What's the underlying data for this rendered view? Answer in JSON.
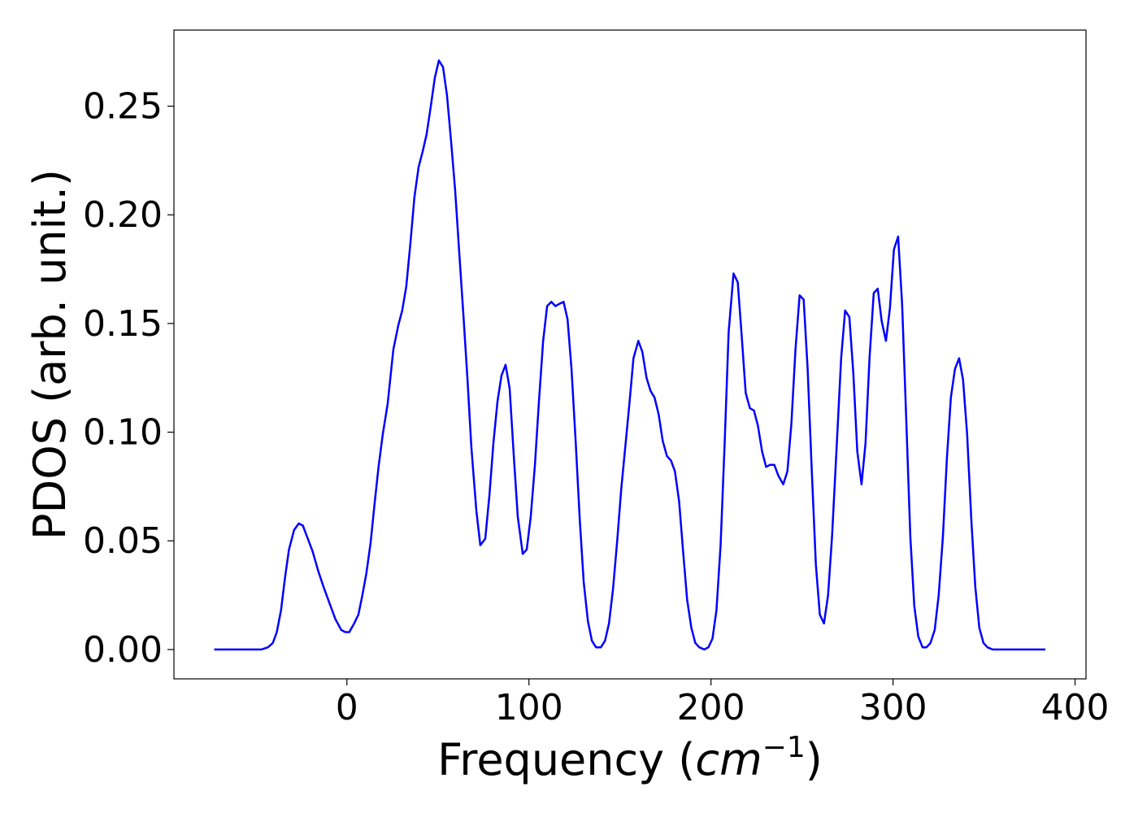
{
  "chart_data": {
    "type": "line",
    "title": "",
    "xlabel": "Frequency",
    "xlabel_unit_base": "cm",
    "xlabel_unit_exp": "−1",
    "ylabel": "PDOS (arb. unit.)",
    "xlim": [
      -95,
      406
    ],
    "ylim": [
      -0.0135,
      0.285
    ],
    "grid": false,
    "legend": "none",
    "xticks": [
      0,
      100,
      200,
      300,
      400
    ],
    "xtick_labels": [
      "0",
      "100",
      "200",
      "300",
      "400"
    ],
    "yticks": [
      0,
      0.05,
      0.1,
      0.15,
      0.2,
      0.25
    ],
    "ytick_labels": [
      "0.00",
      "0.05",
      "0.10",
      "0.15",
      "0.20",
      "0.25"
    ],
    "series": [
      {
        "name": "PDOS",
        "color": "#0000ff",
        "x": [
          -72.9,
          -47,
          -43.4,
          -40.7,
          -38.5,
          -36.2,
          -34,
          -31.8,
          -29,
          -26.4,
          -24.2,
          -21.9,
          -18.8,
          -15.7,
          -12.5,
          -9.4,
          -6.3,
          -3.1,
          -0.9,
          1.3,
          4,
          6.3,
          8.5,
          10.7,
          13,
          15.2,
          17.4,
          19.7,
          22.4,
          25.5,
          28.2,
          30.4,
          32.6,
          34.9,
          37.1,
          39.4,
          41.6,
          43.8,
          46.1,
          48.3,
          50.5,
          52.8,
          55,
          57.2,
          59.5,
          61.7,
          63.9,
          66.2,
          68.4,
          71.1,
          73.3,
          76,
          78.3,
          80.5,
          82.7,
          84.9,
          87.2,
          89.4,
          91.7,
          93.9,
          96.6,
          98.8,
          101,
          103.3,
          105.5,
          107.8,
          110,
          112.3,
          114.5,
          116.7,
          119,
          121.2,
          123.4,
          125.7,
          127.9,
          130.1,
          132.4,
          134.6,
          136.9,
          139.5,
          141.8,
          144,
          146.2,
          148.5,
          150.7,
          152.9,
          155.2,
          157.4,
          160.1,
          162.3,
          164.6,
          166.8,
          169,
          171.3,
          173.5,
          175.8,
          178,
          180.2,
          182.5,
          184.7,
          186.9,
          189.2,
          191.4,
          193.6,
          196.3,
          198.6,
          200.8,
          203,
          205.3,
          207.5,
          209.7,
          212.4,
          214.7,
          216.9,
          219.1,
          221.4,
          223.6,
          225.8,
          228.1,
          230.3,
          232.5,
          234.8,
          237,
          239.7,
          242,
          244.2,
          246.4,
          248.7,
          250.9,
          253.1,
          255.4,
          257.6,
          259.8,
          262.1,
          264.3,
          266.5,
          268.8,
          271.5,
          273.7,
          276,
          278.2,
          280.4,
          282.7,
          284.9,
          287.1,
          289.4,
          291.6,
          293.8,
          296.1,
          298.3,
          300.5,
          302.8,
          305,
          307.2,
          309.5,
          311.7,
          313.9,
          316.2,
          318.4,
          320.6,
          322.9,
          325.1,
          327.4,
          329.6,
          331.8,
          334,
          336.3,
          338.5,
          340.7,
          343,
          345.2,
          347.4,
          349.7,
          351.9,
          354.7,
          383.7
        ],
        "y": [
          0,
          0,
          0.001,
          0.003,
          0.008,
          0.018,
          0.033,
          0.046,
          0.055,
          0.058,
          0.057,
          0.052,
          0.045,
          0.036,
          0.028,
          0.021,
          0.014,
          0.009,
          0.008,
          0.008,
          0.012,
          0.016,
          0.025,
          0.035,
          0.049,
          0.067,
          0.084,
          0.099,
          0.113,
          0.138,
          0.149,
          0.156,
          0.167,
          0.187,
          0.208,
          0.222,
          0.229,
          0.237,
          0.25,
          0.263,
          0.271,
          0.268,
          0.255,
          0.234,
          0.211,
          0.183,
          0.155,
          0.125,
          0.093,
          0.064,
          0.048,
          0.051,
          0.071,
          0.095,
          0.114,
          0.126,
          0.131,
          0.12,
          0.089,
          0.061,
          0.044,
          0.046,
          0.061,
          0.085,
          0.114,
          0.142,
          0.158,
          0.16,
          0.158,
          0.159,
          0.16,
          0.152,
          0.129,
          0.095,
          0.06,
          0.031,
          0.013,
          0.004,
          0.001,
          0.001,
          0.004,
          0.012,
          0.028,
          0.05,
          0.074,
          0.093,
          0.113,
          0.134,
          0.142,
          0.137,
          0.125,
          0.119,
          0.116,
          0.108,
          0.096,
          0.089,
          0.087,
          0.082,
          0.068,
          0.045,
          0.023,
          0.01,
          0.003,
          0.001,
          0,
          0.001,
          0.005,
          0.018,
          0.048,
          0.095,
          0.146,
          0.173,
          0.169,
          0.144,
          0.118,
          0.111,
          0.11,
          0.103,
          0.091,
          0.084,
          0.085,
          0.085,
          0.08,
          0.076,
          0.082,
          0.104,
          0.138,
          0.163,
          0.161,
          0.129,
          0.082,
          0.039,
          0.016,
          0.012,
          0.025,
          0.052,
          0.089,
          0.134,
          0.156,
          0.153,
          0.127,
          0.091,
          0.076,
          0.095,
          0.134,
          0.164,
          0.166,
          0.151,
          0.142,
          0.157,
          0.184,
          0.19,
          0.159,
          0.108,
          0.052,
          0.02,
          0.006,
          0.001,
          0.001,
          0.003,
          0.009,
          0.025,
          0.052,
          0.088,
          0.116,
          0.129,
          0.134,
          0.124,
          0.099,
          0.06,
          0.029,
          0.01,
          0.003,
          0.001,
          0,
          0
        ]
      }
    ]
  }
}
